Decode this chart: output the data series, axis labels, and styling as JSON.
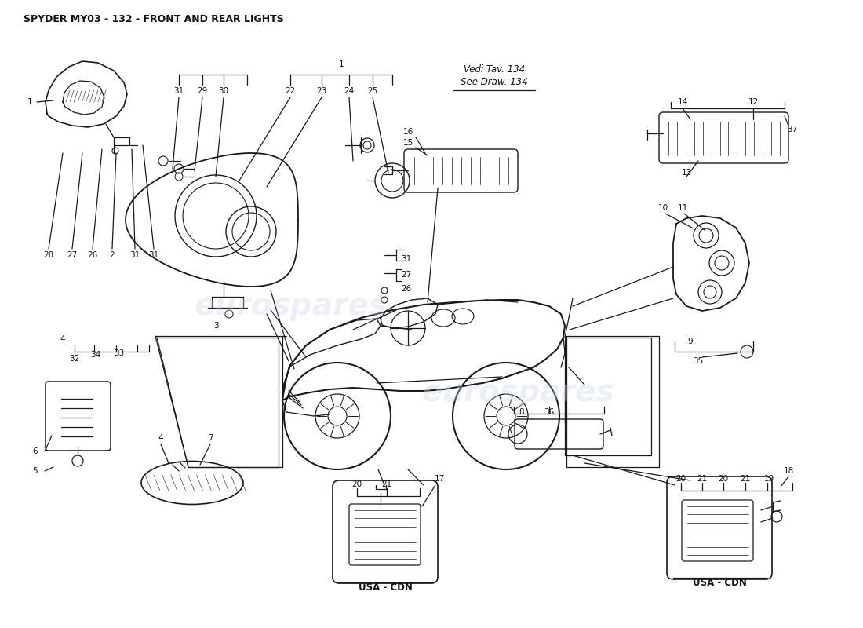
{
  "title": "SPYDER MY03 - 132 - FRONT AND REAR LIGHTS",
  "bg": "#ffffff",
  "lc": "#1a1a1a",
  "tc": "#111111",
  "title_fontsize": 9,
  "fs": 7.5,
  "watermark_color": "#c8d4e8",
  "watermark_alpha": 0.35,
  "usa_cdn": "USA - CDN",
  "vedi_tav": "Vedi Tav. 134",
  "see_draw": "See Draw. 134"
}
